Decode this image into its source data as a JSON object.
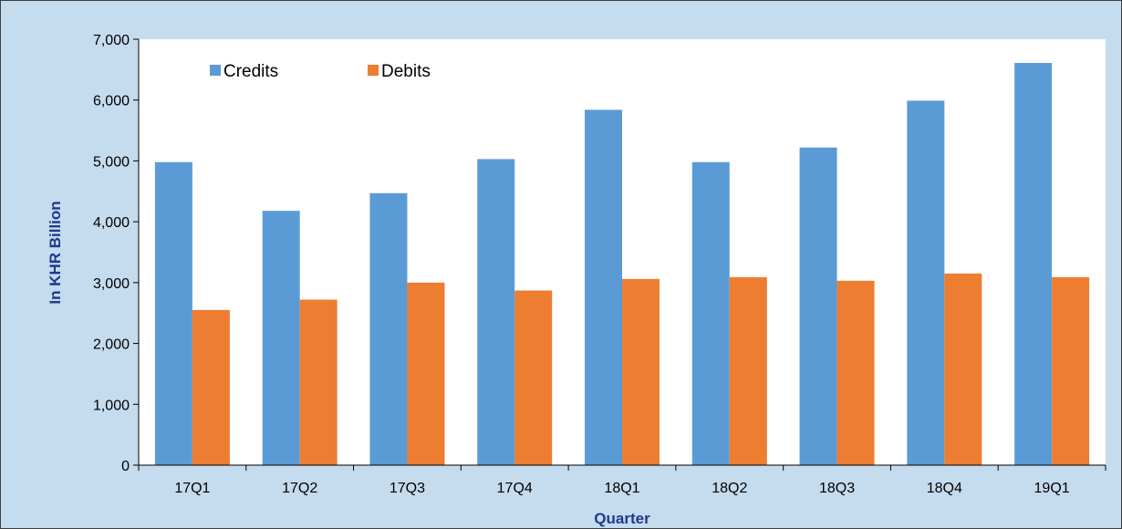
{
  "chart_data": {
    "type": "bar",
    "title": "",
    "xlabel": "Quarter",
    "ylabel": "In KHR  Billion",
    "categories": [
      "17Q1",
      "17Q2",
      "17Q3",
      "17Q4",
      "18Q1",
      "18Q2",
      "18Q3",
      "18Q4",
      "19Q1"
    ],
    "series": [
      {
        "name": "Credits",
        "color": "#5b9bd5",
        "values": [
          4980,
          4180,
          4470,
          5030,
          5840,
          4980,
          5220,
          5990,
          6610
        ]
      },
      {
        "name": "Debits",
        "color": "#ed7d31",
        "values": [
          2550,
          2720,
          3000,
          2870,
          3060,
          3090,
          3030,
          3150,
          3090
        ]
      }
    ],
    "ylim": [
      0,
      7000
    ],
    "yticks": [
      0,
      1000,
      2000,
      3000,
      4000,
      5000,
      6000,
      7000
    ],
    "ytick_labels": [
      "0",
      "1,000",
      "2,000",
      "3,000",
      "4,000",
      "5,000",
      "6,000",
      "7,000"
    ],
    "grid": false,
    "legend": "top-left",
    "background": "#c5dbee",
    "plot_background": "#ffffff",
    "axis_title_color": "#1f3a8a"
  }
}
